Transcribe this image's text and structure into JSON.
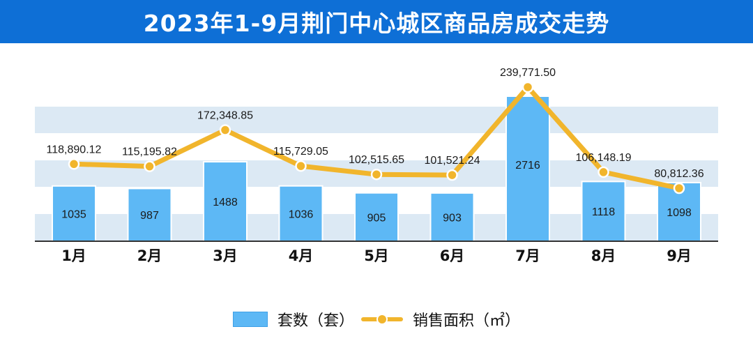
{
  "header": {
    "title": "2023年1-9月荆门中心城区商品房成交走势"
  },
  "chart_data": {
    "type": "bar+line",
    "title": "2023年1-9月荆门中心城区商品房成交走势",
    "categories": [
      "1月",
      "2月",
      "3月",
      "4月",
      "5月",
      "6月",
      "7月",
      "8月",
      "9月"
    ],
    "series": [
      {
        "name": "套数（套）",
        "type": "bar",
        "axis": "left",
        "color": "#5db8f5",
        "values": [
          1035,
          987,
          1488,
          1036,
          905,
          903,
          2716,
          1118,
          1098
        ],
        "labels": [
          "1035",
          "987",
          "1488",
          "1036",
          "905",
          "903",
          "2716",
          "1118",
          "1098"
        ]
      },
      {
        "name": "销售面积（㎡）",
        "type": "line",
        "axis": "right",
        "color": "#f1b52c",
        "values": [
          118890.12,
          115195.82,
          172348.85,
          115729.05,
          102515.65,
          101521.24,
          239771.5,
          106148.19,
          80812.36
        ],
        "labels": [
          "118,890.12",
          "115,195.82",
          "172,348.85",
          "115,729.05",
          "102,515.65",
          "101,521.24",
          "239,771.50",
          "106,148.19",
          "80,812.36"
        ]
      }
    ],
    "grid": "horizontal alternating bands",
    "legend_position": "bottom"
  },
  "legend": {
    "bar_label": "套数（套）",
    "line_label": "销售面积（㎡）"
  },
  "colors": {
    "banner": "#0e6fd6",
    "bar": "#5db8f5",
    "line": "#f1b52c",
    "band": "#dce9f4"
  }
}
